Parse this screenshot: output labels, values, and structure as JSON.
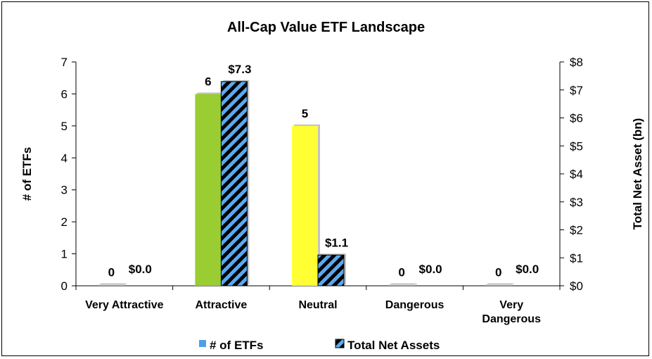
{
  "chart_data": {
    "type": "bar",
    "title": "All-Cap Value ETF Landscape",
    "categories": [
      "Very Attractive",
      "Attractive",
      "Neutral",
      "Dangerous",
      "Very Dangerous"
    ],
    "series": [
      {
        "name": "# of ETFs",
        "axis": "left",
        "values": [
          0,
          6,
          5,
          0,
          0
        ],
        "labels": [
          "0",
          "6",
          "5",
          "0",
          "0"
        ],
        "colors": [
          "#a6a6a6",
          "#9acd32",
          "#ffff33",
          "#a6a6a6",
          "#a6a6a6"
        ],
        "legend_color": "#4f9fe8"
      },
      {
        "name": "Total Net Assets",
        "axis": "right",
        "values": [
          0.0,
          7.3,
          1.1,
          0.0,
          0.0
        ],
        "labels": [
          "$0.0",
          "$7.3",
          "$1.1",
          "$0.0",
          "$0.0"
        ],
        "pattern": "hatched",
        "colors": [
          "#5aa9f0",
          "#000000"
        ]
      }
    ],
    "ylabel": "# of ETFs",
    "ylim": [
      0,
      7
    ],
    "yticks": [
      "0",
      "1",
      "2",
      "3",
      "4",
      "5",
      "6",
      "7"
    ],
    "y2label": "Total Net Asset (bn)",
    "y2lim": [
      0,
      8
    ],
    "y2ticks": [
      "$0",
      "$1",
      "$2",
      "$3",
      "$4",
      "$5",
      "$6",
      "$7",
      "$8"
    ],
    "grid": false,
    "legend": "bottom"
  }
}
